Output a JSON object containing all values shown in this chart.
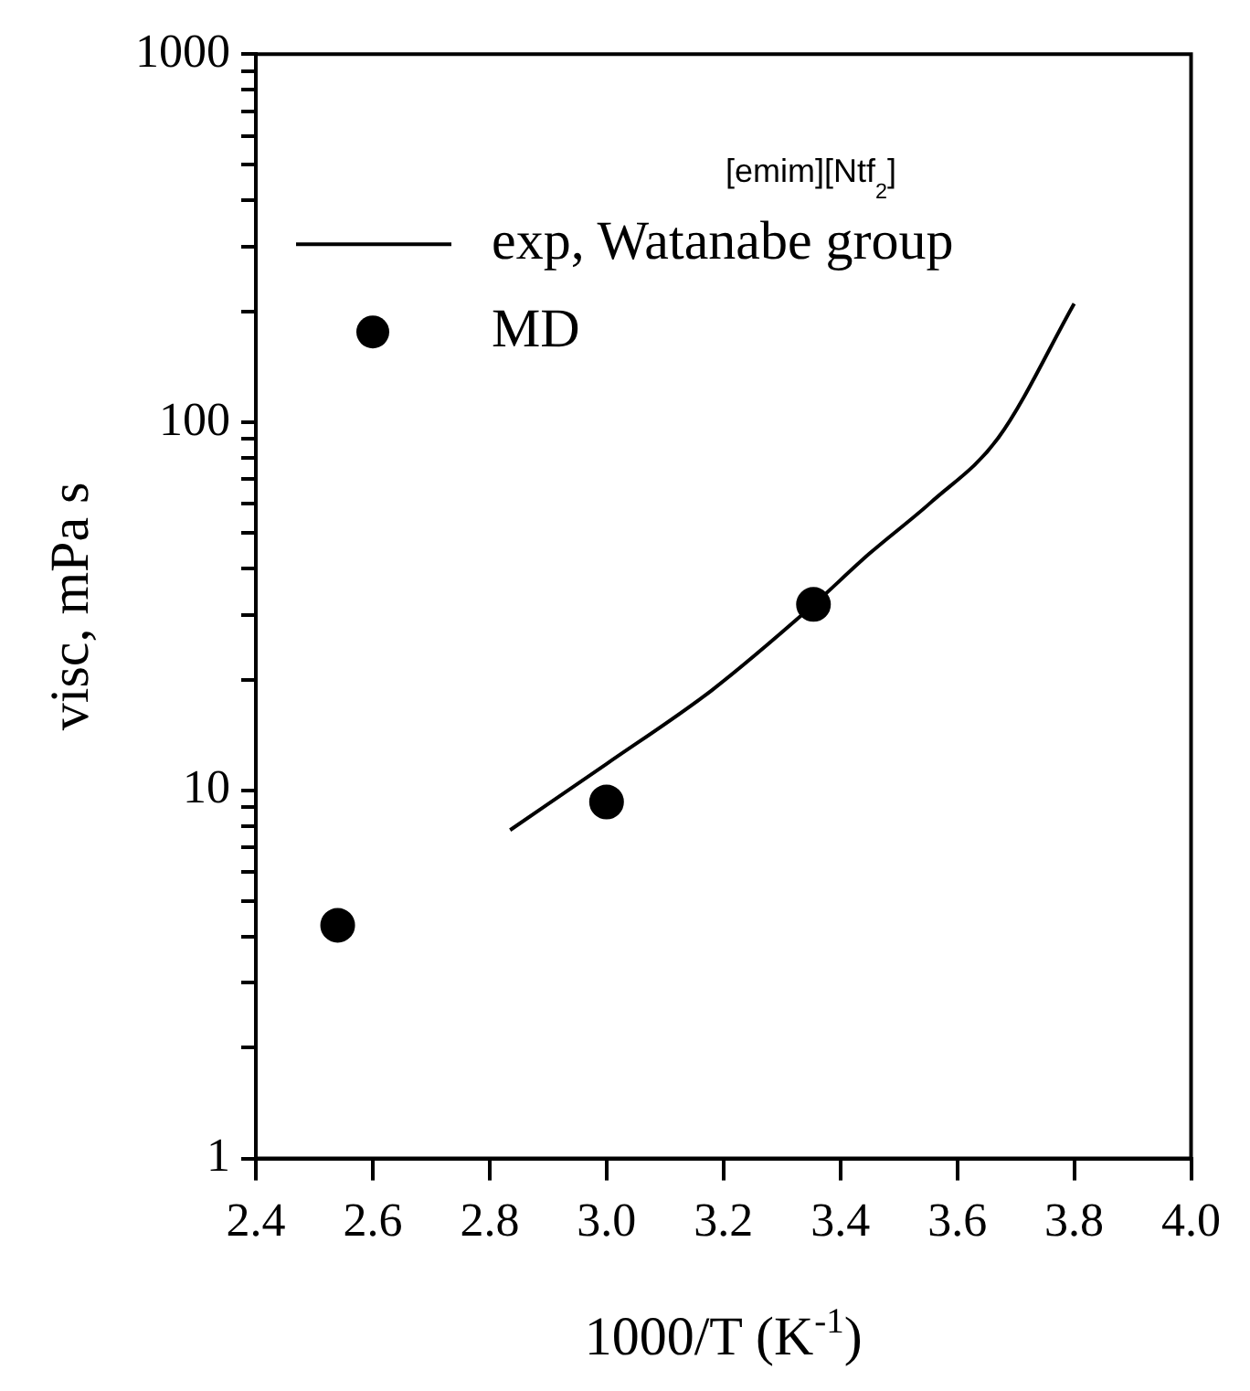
{
  "chart_data": {
    "type": "line",
    "xlabel": "1000/T (K$^{-1}$)",
    "ylabel": "visc, mPa s",
    "annotations": [
      "[emim][Ntf$_{2}$]"
    ],
    "series": [
      {
        "name": "exp, Watanabe group",
        "color": "#000000",
        "marker": "none",
        "line_style": "solid",
        "x": [
          2.835,
          3.0,
          3.18,
          3.35,
          3.45,
          3.555,
          3.67,
          3.8
        ],
        "values": [
          7.8,
          11.8,
          18.7,
          31.5,
          44,
          60.6,
          90.6,
          210
        ]
      },
      {
        "name": "MD",
        "type": "scatter",
        "color": "#000000",
        "marker": "circle",
        "x": [
          2.54,
          3.0,
          3.354
        ],
        "values": [
          4.3,
          9.3,
          32
        ]
      }
    ],
    "xlim": [
      2.4,
      4.0
    ],
    "xticks": [
      2.4,
      2.6,
      2.8,
      {
        "value": 3,
        "label": "3.0"
      },
      3.2,
      3.4,
      3.6,
      3.8,
      {
        "value": 4,
        "label": "4.0"
      }
    ],
    "ylim": [
      1,
      1000
    ],
    "yticks": [
      1,
      {
        "value": 2,
        "label": null
      },
      {
        "value": 3,
        "label": null
      },
      {
        "value": 4,
        "label": null
      },
      {
        "value": 5,
        "label": null
      },
      {
        "value": 6,
        "label": null
      },
      {
        "value": 7,
        "label": null
      },
      {
        "value": 8,
        "label": null
      },
      {
        "value": 9,
        "label": null
      },
      10,
      {
        "value": 20,
        "label": null
      },
      {
        "value": 30,
        "label": null
      },
      {
        "value": 40,
        "label": null
      },
      {
        "value": 50,
        "label": null
      },
      {
        "value": 60,
        "label": null
      },
      {
        "value": 70,
        "label": null
      },
      {
        "value": 80,
        "label": null
      },
      {
        "value": 90,
        "label": null
      },
      100,
      {
        "value": 200,
        "label": null
      },
      {
        "value": 300,
        "label": null
      },
      {
        "value": 400,
        "label": null
      },
      {
        "value": 500,
        "label": null
      },
      {
        "value": 600,
        "label": null
      },
      {
        "value": 700,
        "label": null
      },
      {
        "value": 800,
        "label": null
      },
      {
        "value": 900,
        "label": null
      },
      1000
    ],
    "log": "y",
    "grid": false,
    "legend": "top left"
  }
}
